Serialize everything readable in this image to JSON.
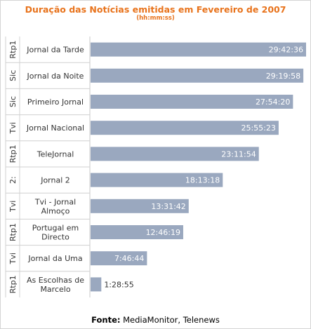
{
  "chart_data": {
    "type": "bar",
    "orientation": "horizontal",
    "title": "Duração das Notícias emitidas em Fevereiro de 2007",
    "subtitle": "(hh:mm:ss)",
    "categories": [
      {
        "channel": "Rtp1",
        "program": [
          "Jornal da Tarde"
        ]
      },
      {
        "channel": "Sic",
        "program": [
          "Jornal da Noite"
        ]
      },
      {
        "channel": "Sic",
        "program": [
          "Primeiro Jornal"
        ]
      },
      {
        "channel": "Tvi",
        "program": [
          "Jornal Nacional"
        ]
      },
      {
        "channel": "Rtp1",
        "program": [
          "TeleJornal"
        ]
      },
      {
        "channel": "2:",
        "program": [
          "Jornal 2"
        ]
      },
      {
        "channel": "Tvi",
        "program": [
          "Tvi - Jornal",
          "Almoço"
        ]
      },
      {
        "channel": "Rtp1",
        "program": [
          "Portugal em",
          "Directo"
        ]
      },
      {
        "channel": "Tvi",
        "program": [
          "Jornal da Uma"
        ]
      },
      {
        "channel": "Rtp1",
        "program": [
          "As Escolhas de",
          "Marcelo"
        ]
      }
    ],
    "values": [
      "29:42:36",
      "29:19:58",
      "27:54:20",
      "25:55:23",
      "23:11:54",
      "18:13:18",
      "13:31:42",
      "12:46:19",
      "7:46:44",
      "1:28:55"
    ],
    "bar_color": "#9aa8bf",
    "label_color": "#ffffff",
    "outside_label_color": "#333333",
    "grid": false,
    "legend": "none"
  },
  "footer": {
    "source_label": "Fonte:",
    "source_text": " MediaMonitor, Telenews"
  }
}
